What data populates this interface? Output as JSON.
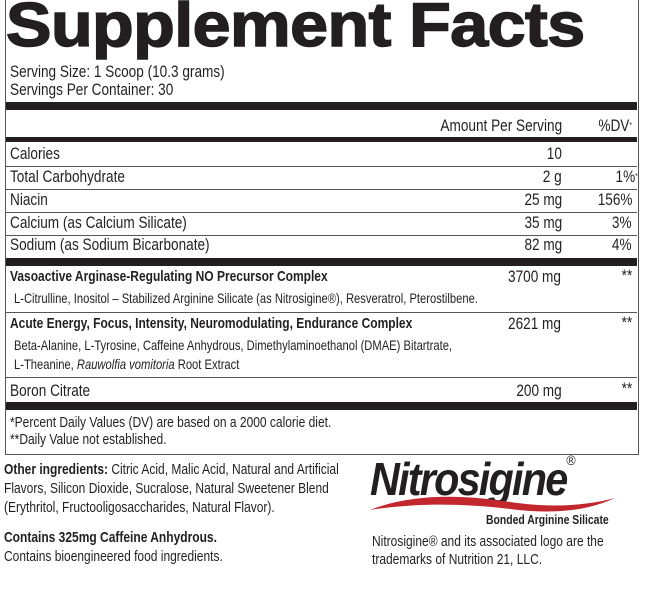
{
  "title": "Supplement Facts",
  "serving_size": "Serving Size: 1 Scoop (10.3 grams)",
  "servings_per_container": "Servings Per Container: 30",
  "header": {
    "amount": "Amount Per Serving",
    "dv": "%DV",
    "dv_mark": "*"
  },
  "nutrients": [
    {
      "name": "Calories",
      "amount": "10",
      "dv": ""
    },
    {
      "name": "Total Carbohydrate",
      "amount": "2 g",
      "dv": "1%",
      "dv_mark": "*"
    },
    {
      "name": "Niacin",
      "amount": "25 mg",
      "dv": "156%"
    },
    {
      "name": "Calcium (as Calcium Silicate)",
      "amount": "35 mg",
      "dv": "3%"
    },
    {
      "name": "Sodium (as Sodium Bicarbonate)",
      "amount": "82 mg",
      "dv": "4%"
    }
  ],
  "complexes": [
    {
      "name": "Vasoactive Arginase-Regulating NO Precursor Complex",
      "amount": "3700 mg",
      "dv": "**",
      "ingredients": [
        "L-Citrulline, Inositol – Stabilized Arginine Silicate (as Nitrosigine®), Resveratrol, Pterostilbene."
      ]
    },
    {
      "name": "Acute Energy, Focus, Intensity, Neuromodulating, Endurance Complex",
      "amount": "2621 mg",
      "dv": "**",
      "ingredients": [
        "Beta-Alanine, L-Tyrosine, Caffeine Anhydrous, Dimethylaminoethanol (DMAE) Bitartrate,",
        "L-Theanine, ",
        "Rauwolfia vomitoria",
        " Root Extract"
      ]
    },
    {
      "name": "Boron Citrate",
      "amount": "200 mg",
      "dv": "**"
    }
  ],
  "footnotes": [
    "*Percent Daily Values (DV) are based on a 2000 calorie diet.",
    "**Daily Value not established."
  ],
  "other_ingredients": {
    "label": "Other ingredients:",
    "lines": [
      " Citric Acid, Malic Acid, Natural and Artificial",
      "Flavors, Silicon Dioxide, Sucralose, Natural Sweetener Blend",
      "(Erythritol, Fructooligosaccharides, Natural Flavor)."
    ]
  },
  "caffeine_statement": "Contains 325mg Caffeine Anhydrous.",
  "bioengineered_statement": "Contains bioengineered food ingredients.",
  "logo": {
    "name": "Nitrosigine",
    "reg": "®",
    "tagline": "Bonded Arginine Silicate",
    "swoosh_color": "#c1272d"
  },
  "trademark": [
    "Nitrosigine® and its associated logo are the",
    "trademarks of Nutrition 21, LLC."
  ]
}
